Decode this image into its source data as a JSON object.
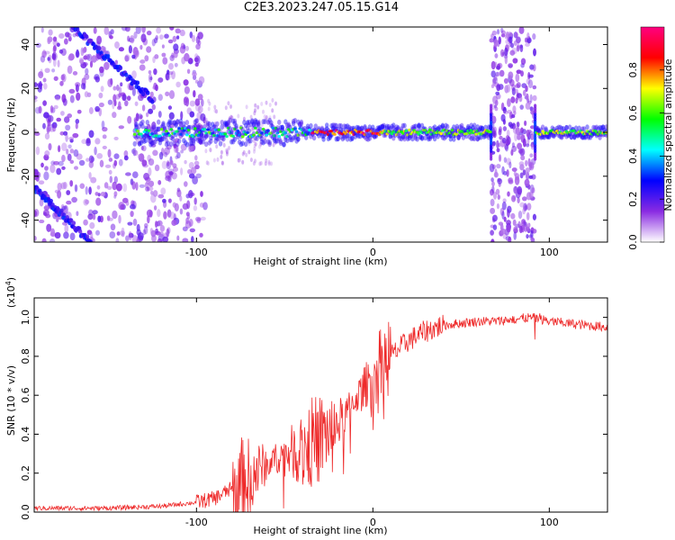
{
  "title": "C2E3.2023.247.05.15.G14",
  "chart_data": [
    {
      "type": "heatmap",
      "xlabel": "Height of straight line (km)",
      "ylabel": "Frequency (Hz)",
      "xlim": [
        -192,
        133
      ],
      "ylim": [
        -50,
        48
      ],
      "xticks": [
        -100,
        0,
        100
      ],
      "yticks": [
        -40,
        -20,
        0,
        20,
        40
      ],
      "colorbar": {
        "label": "Normalized spectral amplitude",
        "range": [
          0.0,
          1.0
        ],
        "ticks": [
          0.0,
          0.2,
          0.4,
          0.6,
          0.8
        ],
        "tick_labels": [
          "0.0",
          "0.2",
          "0.4",
          "0.6",
          "0.8"
        ],
        "colors": [
          "#ffffff",
          "#8a2be2",
          "#0000ff",
          "#00ffff",
          "#00ff00",
          "#ffff00",
          "#ff0000",
          "#ff0080"
        ]
      },
      "features": {
        "center_line_hz": 0,
        "bright_core_x": [
          -35,
          5
        ],
        "noise_region_x": [
          -192,
          -95
        ],
        "noise_bands_x": [
          [
            67,
            92
          ]
        ],
        "diagonal_tracks": [
          {
            "x": [
              -192,
              -160
            ],
            "y": [
              -25,
              -50
            ]
          },
          {
            "x": [
              -170,
              -125
            ],
            "y": [
              48,
              15
            ]
          }
        ]
      }
    },
    {
      "type": "line",
      "xlabel": "Height of straight line (km)",
      "ylabel": "SNR (10 * v/v)",
      "ylabel_exponent": "(x10^4)",
      "exp_base": "(x10",
      "exp_power": "4",
      "exp_close": ")",
      "xlim": [
        -192,
        133
      ],
      "ylim": [
        0,
        1.1
      ],
      "xticks": [
        -100,
        0,
        100
      ],
      "yticks": [
        0.0,
        0.2,
        0.4,
        0.6,
        0.8,
        1.0
      ],
      "ytick_labels": [
        "0.0",
        "0.2",
        "0.4",
        "0.6",
        "0.8",
        "1.0"
      ],
      "color": "#ee2a2a",
      "series": [
        {
          "x": [
            -192,
            -150,
            -120,
            -100,
            -90,
            -80,
            -70,
            -60,
            -50,
            -40,
            -30,
            -20,
            -10,
            0,
            10,
            20,
            30,
            40,
            50,
            60,
            70,
            80,
            90,
            100,
            110,
            120,
            133
          ],
          "y": [
            0.02,
            0.02,
            0.03,
            0.05,
            0.07,
            0.12,
            0.18,
            0.25,
            0.3,
            0.33,
            0.38,
            0.45,
            0.58,
            0.7,
            0.8,
            0.88,
            0.93,
            0.96,
            0.97,
            0.98,
            0.98,
            0.99,
            1.0,
            0.98,
            0.97,
            0.96,
            0.95
          ]
        }
      ]
    }
  ]
}
